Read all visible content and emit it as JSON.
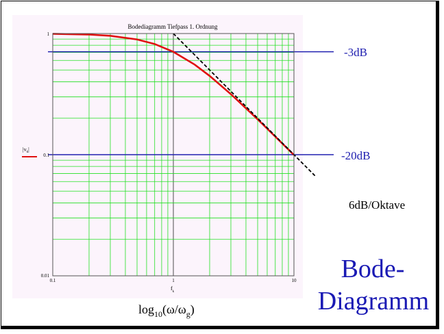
{
  "chart_data": {
    "type": "line",
    "title": "Bodediagramm Tiefpass 1. Ordnung",
    "scale": "log-log",
    "xlim": [
      0.1,
      10
    ],
    "ylim": [
      0.01,
      1
    ],
    "grid": true,
    "x_tick_labels": [
      "0.1",
      "1",
      "10"
    ],
    "y_tick_labels": [
      "1",
      "0.1",
      "0.01"
    ],
    "x_axis_symbol": "f",
    "x_axis_symbol_sub": "k",
    "y_axis_symbol": "|v",
    "y_axis_symbol_sub": "k",
    "y_axis_symbol_end": "|",
    "series": [
      {
        "name": "",
        "color": "#e01010",
        "style": "solid",
        "x": [
          0.1,
          0.2,
          0.3,
          0.5,
          0.7,
          1,
          1.5,
          2,
          3,
          5,
          7,
          10
        ],
        "y": [
          0.995,
          0.981,
          0.958,
          0.894,
          0.819,
          0.707,
          0.555,
          0.447,
          0.316,
          0.196,
          0.141,
          0.0995
        ]
      },
      {
        "name": "",
        "color": "#000000",
        "style": "dashed",
        "x": [
          1,
          2,
          5,
          10,
          15
        ],
        "y": [
          1,
          0.5,
          0.2,
          0.1,
          0.0667
        ]
      }
    ],
    "reference_lines": [
      {
        "y": 0.707,
        "label": "-3dB",
        "color": "#2020b0"
      },
      {
        "y": 0.1,
        "label": "-20dB",
        "color": "#2020b0"
      }
    ],
    "annotation": "6dB/Oktave",
    "xlabel_main": "log",
    "xlabel_sub": "10",
    "xlabel_rest": "(ω/ω",
    "xlabel_sub2": "g",
    "xlabel_end": ")"
  },
  "slide_title_line1": "Bode-",
  "slide_title_line2": "Diagramm",
  "colors": {
    "plot_background": "#fcf4fc",
    "grid": "#22e022",
    "title_blue": "#1a1ab4"
  }
}
